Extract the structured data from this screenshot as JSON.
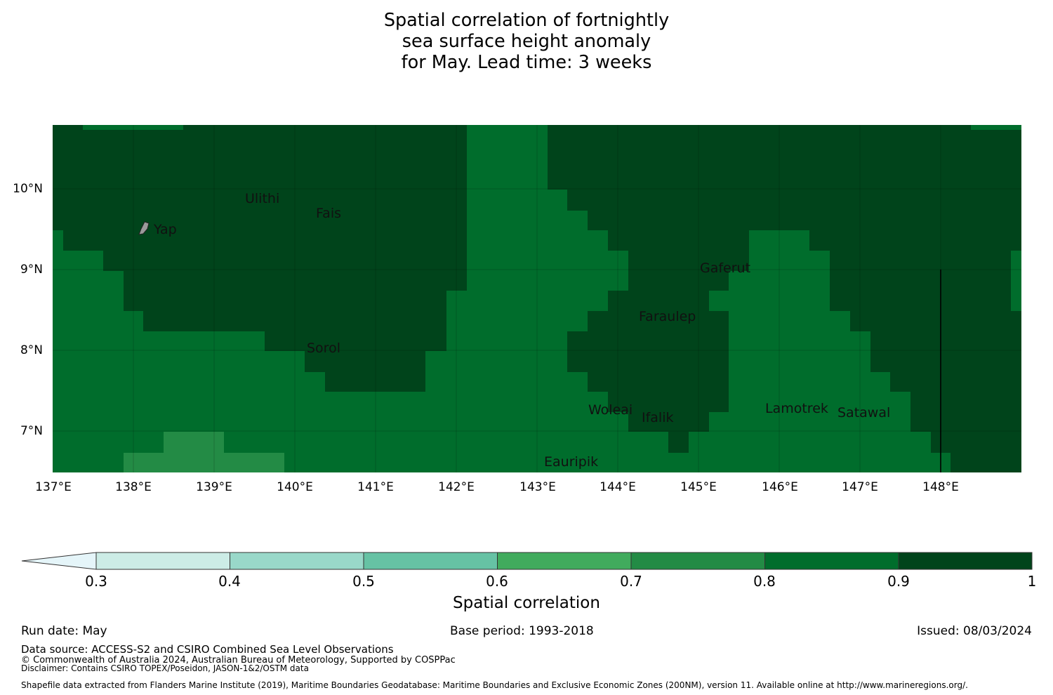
{
  "title": {
    "line1": "Spatial correlation of fortnightly",
    "line2": "sea surface height anomaly",
    "line3": "for May. Lead time: 3 weeks"
  },
  "map": {
    "lat_ticks": [
      "10°N",
      "9°N",
      "8°N",
      "7°N"
    ],
    "lon_ticks": [
      "137°E",
      "138°E",
      "139°E",
      "140°E",
      "141°E",
      "142°E",
      "143°E",
      "144°E",
      "145°E",
      "146°E",
      "147°E",
      "148°E"
    ],
    "lat_range": [
      6.5,
      10.8
    ],
    "lon_range": [
      137.0,
      149.0
    ],
    "places": [
      {
        "name": "Ulithi"
      },
      {
        "name": "Fais"
      },
      {
        "name": "Yap"
      },
      {
        "name": "Gaferut"
      },
      {
        "name": "Faraulep"
      },
      {
        "name": "Sorol"
      },
      {
        "name": "Woleai"
      },
      {
        "name": "Ifalik"
      },
      {
        "name": "Lamotrek"
      },
      {
        "name": "Satawal"
      },
      {
        "name": "Eauripik"
      }
    ],
    "colors": {
      "0.6-0.7": "#41ab5d",
      "0.7-0.8": "#238b45",
      "0.8-0.9": "#006d2c",
      "0.9-1.0": "#00441b"
    }
  },
  "colorbar": {
    "ticks": [
      "0.3",
      "0.4",
      "0.5",
      "0.6",
      "0.7",
      "0.8",
      "0.9",
      "1"
    ],
    "colors": [
      "#e5f5f9",
      "#ccece6",
      "#99d8c9",
      "#66c2a4",
      "#41ab5d",
      "#238b45",
      "#006d2c",
      "#00441b"
    ],
    "label": "Spatial correlation"
  },
  "footer": {
    "run_date": "Run date: May",
    "base_period": "Base period: 1993-2018",
    "issued": "Issued: 08/03/2024",
    "data_source": "Data source: ACCESS-S2 and CSIRO Combined Sea Level Observations",
    "copyright": "© Commonwealth of Australia 2024, Australian Bureau of Meteorology, Supported by COSPPac",
    "disclaimer": "Disclaimer: Contains CSIRO TOPEX/Poseidon, JASON-1&2/OSTM data",
    "shapefile": "Shapefile data extracted from Flanders Marine Institute (2019), Maritime Boundaries Geodatabase: Maritime Boundaries and Exclusive Economic Zones (200NM), version 11. Available online at http://www.marineregions.org/."
  }
}
